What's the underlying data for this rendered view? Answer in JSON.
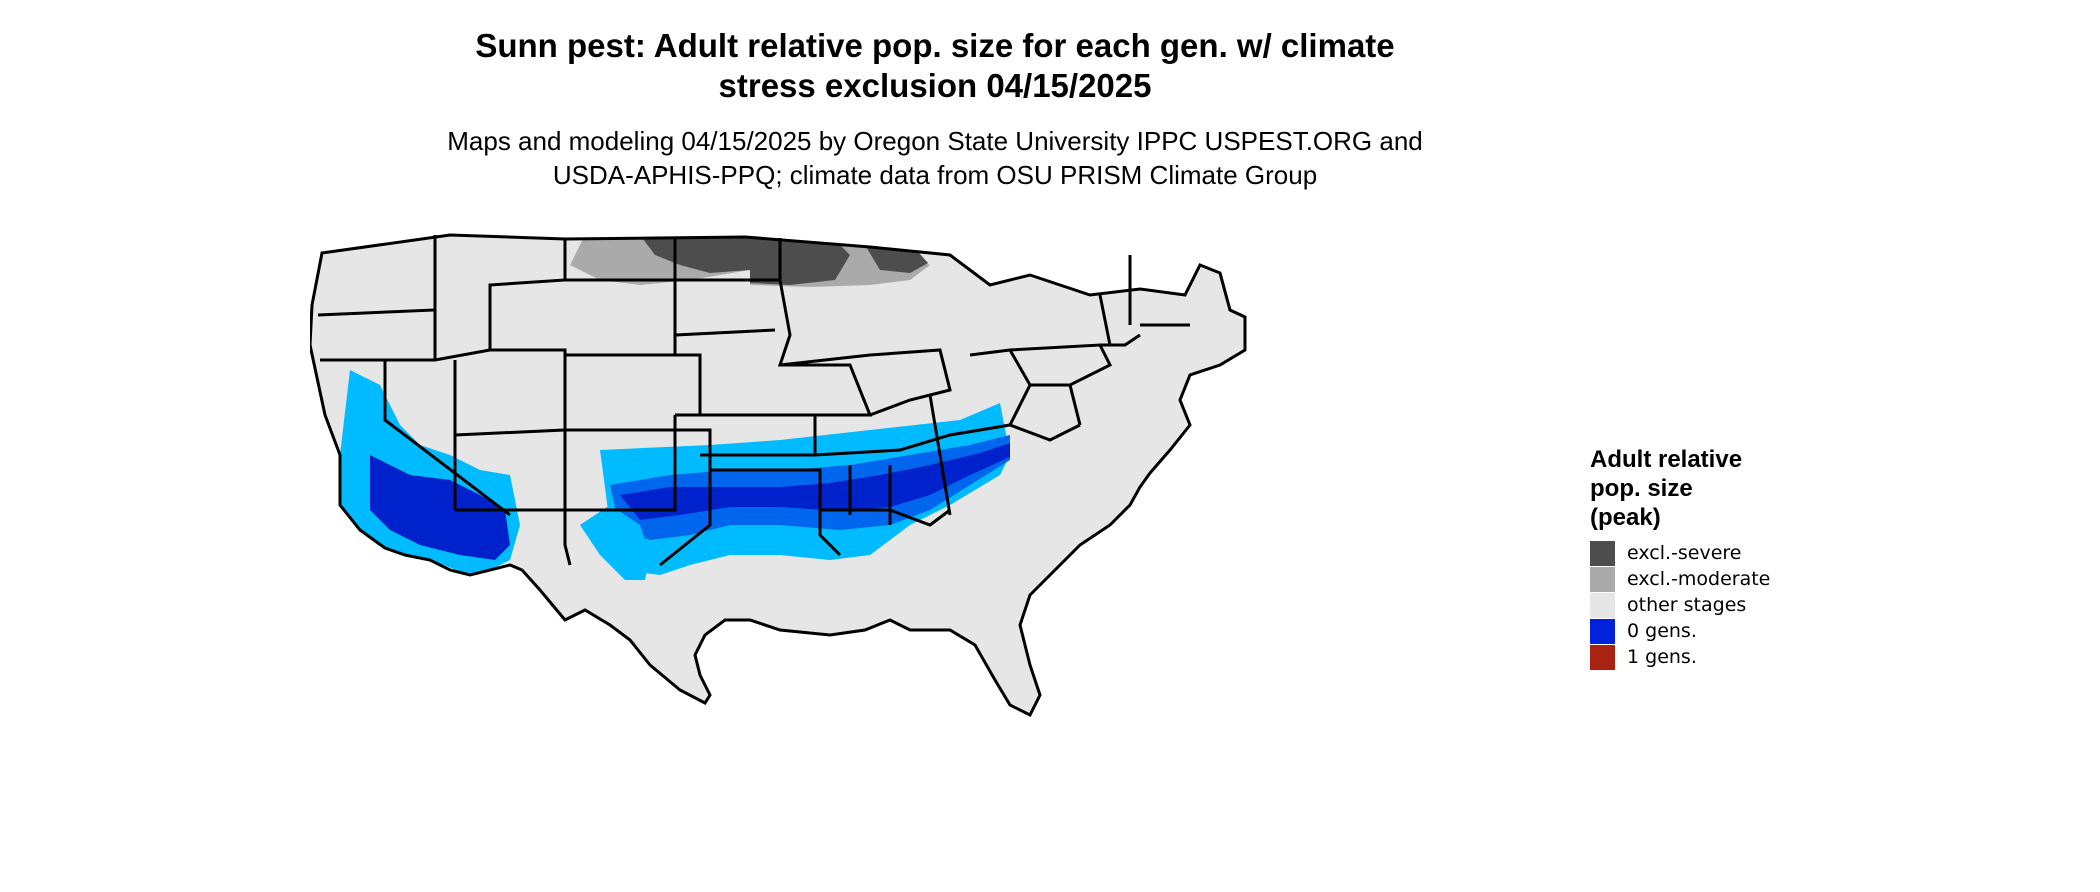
{
  "title_line1": "Sunn pest: Adult relative pop. size for each gen. w/ climate",
  "title_line2": "stress exclusion 04/15/2025",
  "subtitle_line1": "Maps and modeling 04/15/2025 by Oregon State University IPPC USPEST.ORG and",
  "subtitle_line2": "USDA-APHIS-PPQ; climate data from OSU PRISM Climate Group",
  "legend": {
    "title": "Adult relative\npop. size\n(peak)",
    "items": [
      {
        "label": "excl.-severe",
        "color": "#4d4d4d"
      },
      {
        "label": "excl.-moderate",
        "color": "#aaaaaa"
      },
      {
        "label": "other stages",
        "color": "#e6e6e6"
      },
      {
        "label": "0 gens.",
        "color": "#0022dd"
      },
      {
        "label": "1 gens.",
        "color": "#aa2211"
      }
    ]
  },
  "map_colors": {
    "land": "#e6e6e6",
    "excl_severe": "#4d4d4d",
    "excl_moderate": "#aaaaaa",
    "light_blue": "#00bbff",
    "mid_blue": "#0066ee",
    "dark_blue": "#0022cc",
    "border": "#000000"
  }
}
